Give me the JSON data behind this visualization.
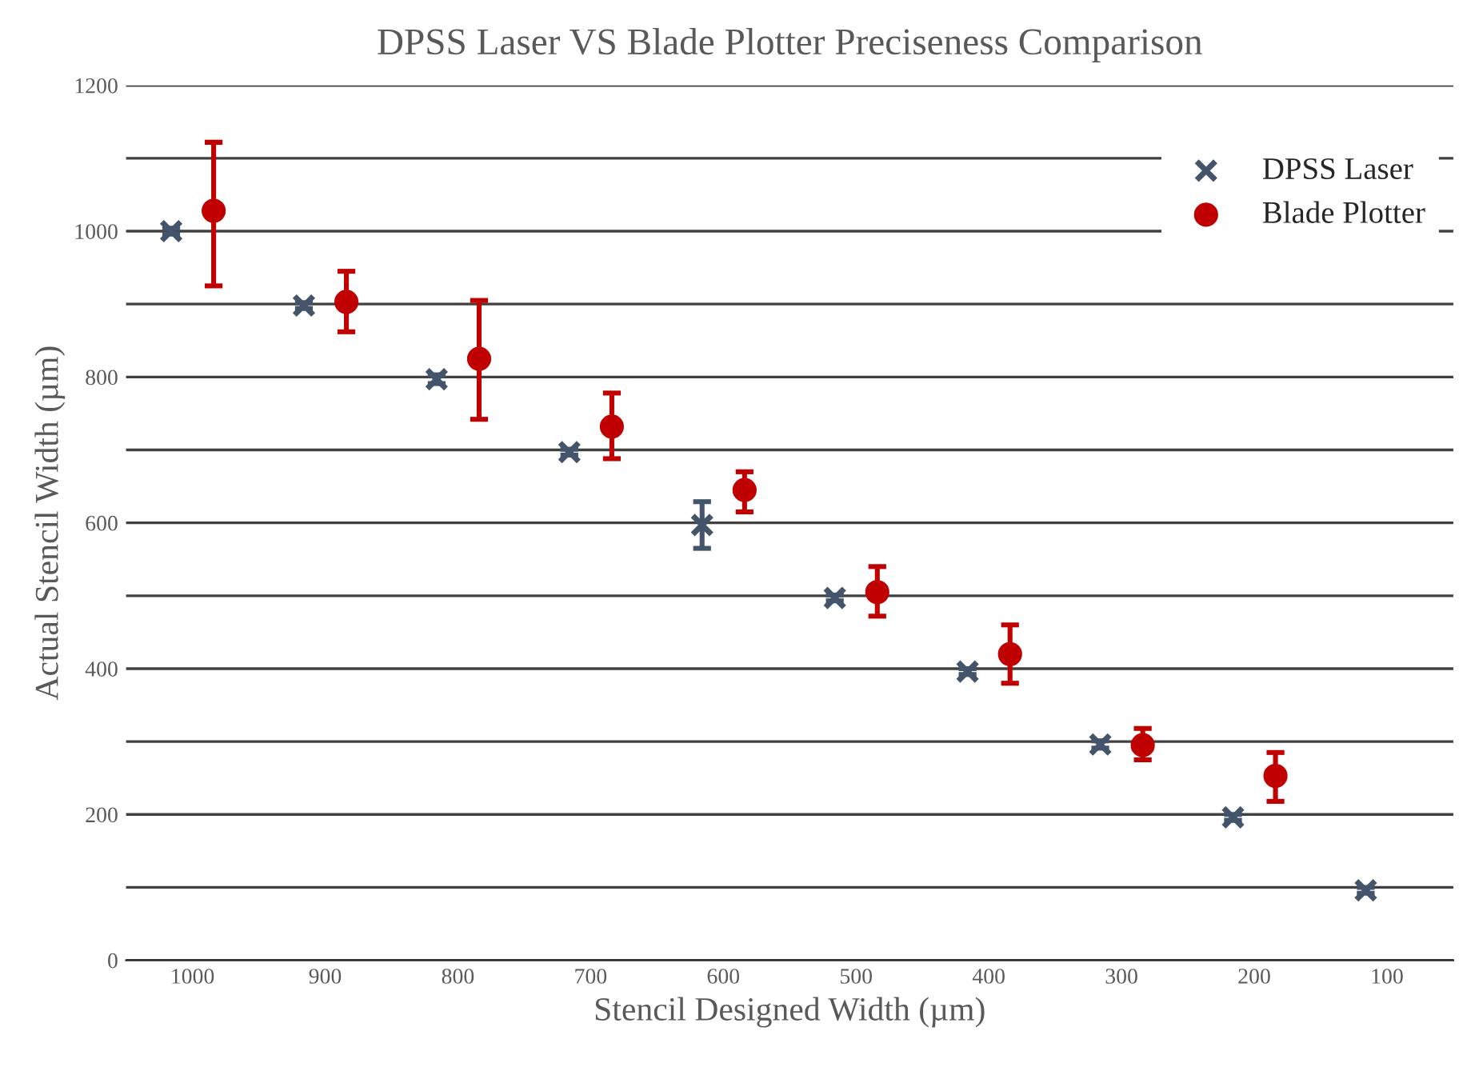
{
  "chart_data": {
    "type": "scatter",
    "title": "DPSS Laser VS Blade Plotter Preciseness Comparison",
    "xlabel": "Stencil Designed Width (µm)",
    "ylabel": "Actual Stencil Width (µm)",
    "categories": [
      "1000",
      "900",
      "800",
      "700",
      "600",
      "500",
      "400",
      "300",
      "200",
      "100"
    ],
    "series": [
      {
        "name": "DPSS Laser",
        "color": "#44546a",
        "marker": "cross",
        "values": [
          1000,
          898,
          797,
          697,
          597,
          497,
          396,
          296,
          196,
          96
        ],
        "errors": [
          4,
          4,
          6,
          4,
          32,
          4,
          4,
          5,
          4,
          4
        ]
      },
      {
        "name": "Blade Plotter",
        "color": "#c00000",
        "marker": "circle",
        "values": [
          1028,
          903,
          825,
          732,
          645,
          505,
          420,
          295,
          253,
          null
        ],
        "errors": [
          [
            925,
            1122
          ],
          [
            862,
            945
          ],
          [
            742,
            905
          ],
          [
            688,
            778
          ],
          [
            615,
            670
          ],
          [
            472,
            540
          ],
          [
            380,
            460
          ],
          [
            275,
            318
          ],
          [
            218,
            285
          ],
          null
        ]
      }
    ],
    "ylim": [
      0,
      1200
    ],
    "yticks": [
      0,
      {
        "value": 100,
        "label": null
      },
      200,
      {
        "value": 300,
        "label": null
      },
      400,
      {
        "value": 500,
        "label": null
      },
      600,
      {
        "value": 700,
        "label": null
      },
      800,
      {
        "value": 900,
        "label": null
      },
      1000,
      {
        "value": 1100,
        "label": null
      },
      1200
    ],
    "grid": "y",
    "legend": "top right"
  }
}
